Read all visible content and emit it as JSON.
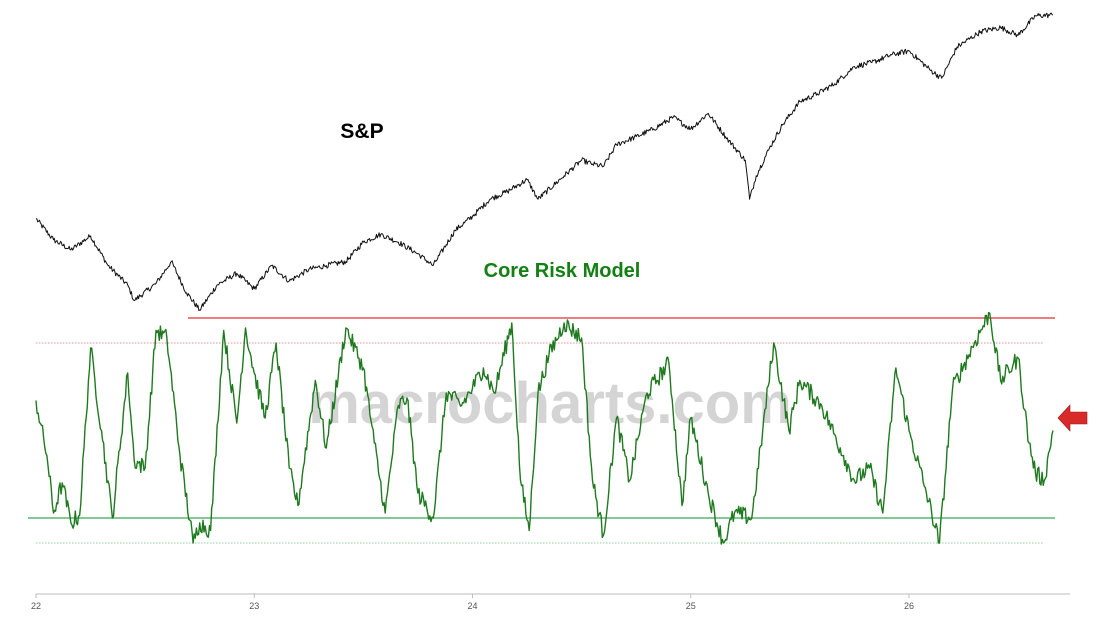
{
  "watermark": "macrocharts.com",
  "colors": {
    "sp_line": "#111111",
    "risk_line": "#1f7a1f",
    "label_green": "#138013",
    "upper_solid": "#e03030",
    "upper_dotted": "#e89090",
    "lower_solid": "#3aa65a",
    "lower_dotted": "#8fcf9f",
    "arrow": "#d92a2a",
    "watermark": "#d4d4d4",
    "axis": "#bbbbbb"
  },
  "chart_data": {
    "type": "line",
    "x_axis": {
      "ticks": [
        {
          "value": 2022,
          "label": "22"
        },
        {
          "value": 2023,
          "label": "23"
        },
        {
          "value": 2024,
          "label": "24"
        },
        {
          "value": 2025,
          "label": "25"
        },
        {
          "value": 2026,
          "label": "26"
        }
      ],
      "range": [
        2022.0,
        2026.75
      ]
    },
    "series": [
      {
        "name": "S&P",
        "color": "#111111",
        "points": [
          [
            2022.0,
            4750
          ],
          [
            2022.08,
            4480
          ],
          [
            2022.16,
            4350
          ],
          [
            2022.25,
            4530
          ],
          [
            2022.33,
            4150
          ],
          [
            2022.42,
            3900
          ],
          [
            2022.45,
            3700
          ],
          [
            2022.55,
            3920
          ],
          [
            2022.62,
            4200
          ],
          [
            2022.69,
            3800
          ],
          [
            2022.75,
            3580
          ],
          [
            2022.83,
            3900
          ],
          [
            2022.92,
            4050
          ],
          [
            2023.0,
            3850
          ],
          [
            2023.08,
            4150
          ],
          [
            2023.16,
            3950
          ],
          [
            2023.25,
            4100
          ],
          [
            2023.33,
            4150
          ],
          [
            2023.42,
            4200
          ],
          [
            2023.5,
            4450
          ],
          [
            2023.58,
            4550
          ],
          [
            2023.66,
            4450
          ],
          [
            2023.75,
            4300
          ],
          [
            2023.82,
            4150
          ],
          [
            2023.92,
            4600
          ],
          [
            2024.0,
            4780
          ],
          [
            2024.08,
            5000
          ],
          [
            2024.16,
            5100
          ],
          [
            2024.25,
            5250
          ],
          [
            2024.3,
            5000
          ],
          [
            2024.42,
            5300
          ],
          [
            2024.5,
            5500
          ],
          [
            2024.55,
            5450
          ],
          [
            2024.6,
            5420
          ],
          [
            2024.66,
            5700
          ],
          [
            2024.75,
            5800
          ],
          [
            2024.83,
            5900
          ],
          [
            2024.92,
            6050
          ],
          [
            2025.0,
            5900
          ],
          [
            2025.08,
            6100
          ],
          [
            2025.16,
            5800
          ],
          [
            2025.25,
            5500
          ],
          [
            2025.27,
            5000
          ],
          [
            2025.3,
            5300
          ],
          [
            2025.36,
            5650
          ],
          [
            2025.42,
            5950
          ],
          [
            2025.5,
            6250
          ],
          [
            2025.58,
            6350
          ],
          [
            2025.66,
            6480
          ],
          [
            2025.75,
            6700
          ],
          [
            2025.83,
            6750
          ],
          [
            2025.92,
            6850
          ],
          [
            2026.0,
            6900
          ],
          [
            2026.1,
            6650
          ],
          [
            2026.15,
            6550
          ],
          [
            2026.22,
            6950
          ],
          [
            2026.33,
            7150
          ],
          [
            2026.42,
            7200
          ],
          [
            2026.5,
            7100
          ],
          [
            2026.58,
            7350
          ],
          [
            2026.66,
            7360
          ]
        ]
      },
      {
        "name": "Core Risk Model",
        "color": "#1f7a1f",
        "points": [
          [
            2022.0,
            57
          ],
          [
            2022.05,
            35
          ],
          [
            2022.08,
            12
          ],
          [
            2022.12,
            24
          ],
          [
            2022.16,
            8
          ],
          [
            2022.2,
            11
          ],
          [
            2022.25,
            78
          ],
          [
            2022.3,
            45
          ],
          [
            2022.35,
            10
          ],
          [
            2022.42,
            68
          ],
          [
            2022.45,
            33
          ],
          [
            2022.5,
            30
          ],
          [
            2022.55,
            85
          ],
          [
            2022.6,
            82
          ],
          [
            2022.66,
            35
          ],
          [
            2022.72,
            0
          ],
          [
            2022.75,
            8
          ],
          [
            2022.8,
            5
          ],
          [
            2022.86,
            85
          ],
          [
            2022.92,
            48
          ],
          [
            2022.96,
            86
          ],
          [
            2023.0,
            68
          ],
          [
            2023.05,
            50
          ],
          [
            2023.1,
            80
          ],
          [
            2023.16,
            30
          ],
          [
            2023.2,
            15
          ],
          [
            2023.28,
            65
          ],
          [
            2023.33,
            38
          ],
          [
            2023.42,
            86
          ],
          [
            2023.5,
            70
          ],
          [
            2023.55,
            40
          ],
          [
            2023.6,
            12
          ],
          [
            2023.66,
            55
          ],
          [
            2023.7,
            58
          ],
          [
            2023.75,
            20
          ],
          [
            2023.82,
            10
          ],
          [
            2023.88,
            60
          ],
          [
            2023.95,
            55
          ],
          [
            2024.0,
            62
          ],
          [
            2024.05,
            70
          ],
          [
            2024.1,
            60
          ],
          [
            2024.18,
            88
          ],
          [
            2024.22,
            25
          ],
          [
            2024.26,
            5
          ],
          [
            2024.3,
            60
          ],
          [
            2024.35,
            75
          ],
          [
            2024.42,
            88
          ],
          [
            2024.5,
            82
          ],
          [
            2024.55,
            25
          ],
          [
            2024.6,
            3
          ],
          [
            2024.66,
            50
          ],
          [
            2024.72,
            25
          ],
          [
            2024.8,
            60
          ],
          [
            2024.9,
            72
          ],
          [
            2024.96,
            15
          ],
          [
            2025.0,
            50
          ],
          [
            2025.08,
            20
          ],
          [
            2025.15,
            0
          ],
          [
            2025.2,
            12
          ],
          [
            2025.28,
            10
          ],
          [
            2025.33,
            45
          ],
          [
            2025.38,
            80
          ],
          [
            2025.45,
            45
          ],
          [
            2025.5,
            65
          ],
          [
            2025.6,
            55
          ],
          [
            2025.7,
            35
          ],
          [
            2025.75,
            25
          ],
          [
            2025.82,
            30
          ],
          [
            2025.88,
            12
          ],
          [
            2025.94,
            70
          ],
          [
            2026.0,
            45
          ],
          [
            2026.08,
            20
          ],
          [
            2026.14,
            0
          ],
          [
            2026.2,
            62
          ],
          [
            2026.3,
            80
          ],
          [
            2026.37,
            92
          ],
          [
            2026.42,
            65
          ],
          [
            2026.5,
            74
          ],
          [
            2026.55,
            40
          ],
          [
            2026.58,
            28
          ],
          [
            2026.62,
            25
          ],
          [
            2026.66,
            45
          ]
        ]
      }
    ],
    "reference_lines": [
      {
        "series": "Core Risk Model",
        "value": 90,
        "style": "solid",
        "color": "#e03030"
      },
      {
        "series": "Core Risk Model",
        "value": 80,
        "style": "dotted",
        "color": "#e89090"
      },
      {
        "series": "Core Risk Model",
        "value": 10,
        "style": "solid",
        "color": "#3aa65a"
      },
      {
        "series": "Core Risk Model",
        "value": 0,
        "style": "dotted",
        "color": "#8fcf9f"
      }
    ],
    "annotations": [
      {
        "type": "arrow",
        "series": "Core Risk Model",
        "x": 2026.75,
        "y": 50,
        "color": "#d92a2a"
      }
    ],
    "grid": false,
    "legend": "none"
  }
}
